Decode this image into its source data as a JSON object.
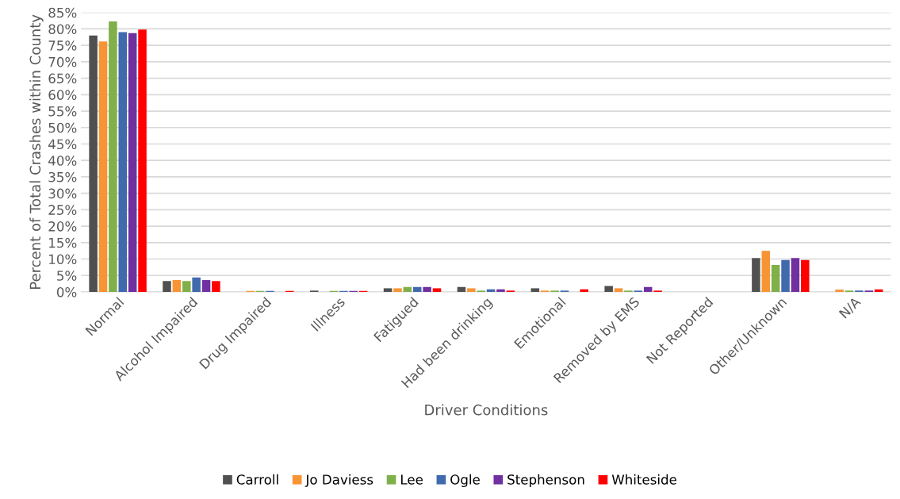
{
  "chart_data": {
    "type": "bar",
    "xlabel": "Driver Conditions",
    "ylabel": "Percent of Total Crashes within County",
    "categories": [
      "Normal",
      "Alcohol Impaired",
      "Drug Impaired",
      "Illness",
      "Fatigued",
      "Had been drinking",
      "Emotional",
      "Removed by EMS",
      "Not Reported",
      "Other/Unknown",
      "N/A"
    ],
    "series": [
      {
        "name": "Carroll",
        "color": "#505050",
        "values": [
          78.0,
          3.3,
          0,
          0.4,
          1.1,
          1.5,
          1.1,
          1.8,
          0,
          10.3,
          0
        ]
      },
      {
        "name": "Jo Daviess",
        "color": "#f79433",
        "values": [
          76.2,
          3.6,
          0.3,
          0,
          1.1,
          1.1,
          0.4,
          1.1,
          0,
          12.5,
          0.7
        ]
      },
      {
        "name": "Lee",
        "color": "#80b04a",
        "values": [
          82.3,
          3.3,
          0.3,
          0.3,
          1.5,
          0.4,
          0.4,
          0.4,
          0,
          8.2,
          0.4
        ]
      },
      {
        "name": "Ogle",
        "color": "#4169ae",
        "values": [
          79.0,
          4.4,
          0.3,
          0.3,
          1.5,
          0.8,
          0.4,
          0.4,
          0,
          9.7,
          0.4
        ]
      },
      {
        "name": "Stephenson",
        "color": "#7030a0",
        "values": [
          78.7,
          3.6,
          0,
          0.3,
          1.5,
          0.8,
          0,
          1.5,
          0,
          10.3,
          0.4
        ]
      },
      {
        "name": "Whiteside",
        "color": "#ff0000",
        "values": [
          79.8,
          3.3,
          0.3,
          0.3,
          1.1,
          0.4,
          0.8,
          0.4,
          0,
          9.7,
          0.8
        ]
      }
    ],
    "ylim": [
      0,
      85
    ],
    "yticks": [
      {
        "value": 0,
        "label": "0%"
      },
      {
        "value": 5,
        "label": "5%"
      },
      {
        "value": 10,
        "label": "10%"
      },
      {
        "value": 15,
        "label": "15%"
      },
      {
        "value": 20,
        "label": "20%"
      },
      {
        "value": 25,
        "label": "25%"
      },
      {
        "value": 30,
        "label": "30%"
      },
      {
        "value": 35,
        "label": "35%"
      },
      {
        "value": 40,
        "label": "40%"
      },
      {
        "value": 45,
        "label": "45%"
      },
      {
        "value": 50,
        "label": "50%"
      },
      {
        "value": 55,
        "label": "55%"
      },
      {
        "value": 60,
        "label": "60%"
      },
      {
        "value": 65,
        "label": "65%"
      },
      {
        "value": 70,
        "label": "70%"
      },
      {
        "value": 75,
        "label": "75%"
      },
      {
        "value": 80,
        "label": "80%"
      },
      {
        "value": 85,
        "label": "85%"
      }
    ],
    "grid": "y",
    "legend": "bottom"
  }
}
